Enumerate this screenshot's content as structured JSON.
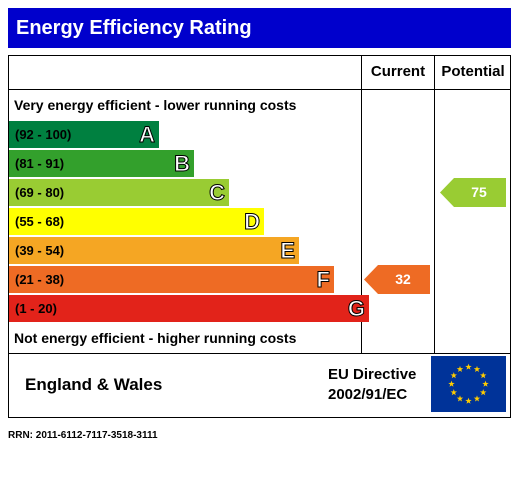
{
  "header": {
    "title": "Energy Efficiency Rating"
  },
  "columns": {
    "current": "Current",
    "potential": "Potential"
  },
  "captions": {
    "top": "Very energy efficient - lower running costs",
    "bottom": "Not energy efficient - higher running costs"
  },
  "chart_data": {
    "type": "bar",
    "title": "Energy Efficiency Rating",
    "bands": [
      {
        "range": "(92 - 100)",
        "letter": "A",
        "color": "#008040"
      },
      {
        "range": "(81 - 91)",
        "letter": "B",
        "color": "#33a02c"
      },
      {
        "range": "(69 - 80)",
        "letter": "C",
        "color": "#99cc33"
      },
      {
        "range": "(55 - 68)",
        "letter": "D",
        "color": "#ffff00"
      },
      {
        "range": "(39 - 54)",
        "letter": "E",
        "color": "#f5a623"
      },
      {
        "range": "(21 - 38)",
        "letter": "F",
        "color": "#ee6b24"
      },
      {
        "range": "(1 - 20)",
        "letter": "G",
        "color": "#e2231a"
      }
    ],
    "current": {
      "value": 32,
      "band": "F",
      "color": "#ee6b24"
    },
    "potential": {
      "value": 75,
      "band": "C",
      "color": "#99cc33"
    }
  },
  "footer": {
    "region": "England & Wales",
    "directive_line1": "EU Directive",
    "directive_line2": "2002/91/EC",
    "flag_icon": "eu-flag-icon"
  },
  "rrn": "RRN: 2011-6112-7117-3518-3111"
}
